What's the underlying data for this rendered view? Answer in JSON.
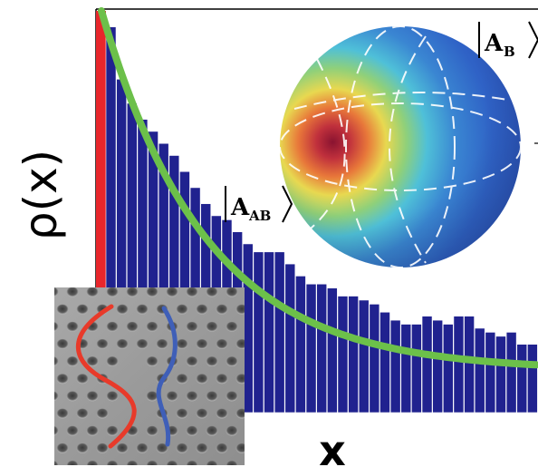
{
  "chart_data": {
    "type": "bar",
    "xlabel": "x",
    "ylabel": "ρ(x)",
    "title": "",
    "grid": false,
    "ylim": [
      0,
      1
    ],
    "bars": [
      {
        "name": "red",
        "color": "#e8262b",
        "values": [
          1.0
        ]
      },
      {
        "name": "histogram",
        "color": "#20228f",
        "values": [
          0.96,
          0.83,
          0.77,
          0.73,
          0.7,
          0.67,
          0.64,
          0.6,
          0.56,
          0.52,
          0.49,
          0.48,
          0.45,
          0.42,
          0.4,
          0.4,
          0.4,
          0.37,
          0.34,
          0.32,
          0.32,
          0.31,
          0.29,
          0.29,
          0.28,
          0.27,
          0.25,
          0.23,
          0.22,
          0.22,
          0.24,
          0.23,
          0.22,
          0.24,
          0.24,
          0.21,
          0.2,
          0.19,
          0.2,
          0.17,
          0.17
        ]
      }
    ],
    "fit_curve": {
      "color": "#6cc04a",
      "x_range": [
        0,
        1
      ],
      "y0": 1.0,
      "y_end": 0.105,
      "decay": 1.3
    }
  },
  "labels": {
    "ket_ab_main": "A",
    "ket_ab_sub": "AB",
    "ket_b_main": "A",
    "ket_b_sub": "B"
  },
  "images": {
    "bloch_sphere": "bloch-sphere-heatmap",
    "sem_inset": "photonic-crystal-sem-image"
  },
  "colors": {
    "histogram_bar": "#20228f",
    "fit_curve": "#6cc04a",
    "red_bar": "#e8262b",
    "path_red": "#e83a2a",
    "path_blue": "#3f5fb8"
  }
}
